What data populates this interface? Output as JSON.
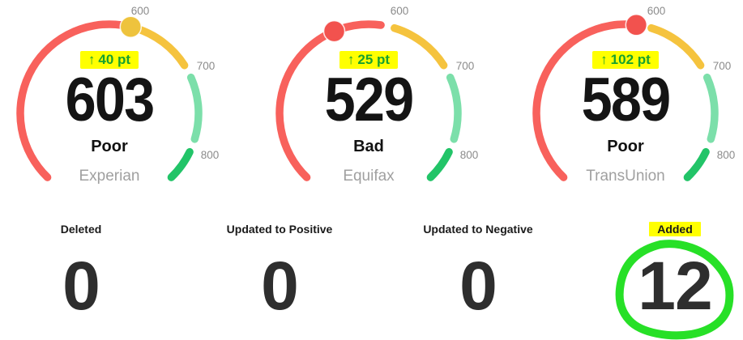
{
  "gauges": [
    {
      "bureau": "Experian",
      "score": "603",
      "category": "Poor",
      "arrow": "↑",
      "delta": "40 pt"
    },
    {
      "bureau": "Equifax",
      "score": "529",
      "category": "Bad",
      "arrow": "↑",
      "delta": "25 pt"
    },
    {
      "bureau": "TransUnion",
      "score": "589",
      "category": "Poor",
      "arrow": "↑",
      "delta": "102 pt"
    }
  ],
  "stats": [
    {
      "label": "Deleted",
      "value": "0"
    },
    {
      "label": "Updated to Positive",
      "value": "0"
    },
    {
      "label": "Updated to Negative",
      "value": "0"
    },
    {
      "label": "Added",
      "value": "12"
    }
  ],
  "colors": {
    "arc_red": "#F8615C",
    "arc_gold": "#F5C33E",
    "arc_mint": "#7CDFAA",
    "arc_green": "#22C468",
    "dot_gold": "#EEC33D",
    "dot_red": "#F2524E",
    "tick_gray": "#8B8B8B",
    "bureau_gray": "#A0A0A0",
    "delta_green": "#18A12E",
    "highlight_yellow": "#FFFF00",
    "annotation_green": "#27E027",
    "score_black": "#141414",
    "value_dark": "#2E2E2E"
  },
  "chart_data": [
    {
      "type": "gauge",
      "title": "Experian",
      "value": 603,
      "category": "Poor",
      "delta": "+40 pt",
      "min": 300,
      "max": 850,
      "ticks": [
        "600",
        "700",
        "800"
      ],
      "tick_values": [
        600,
        700,
        800
      ],
      "segments": [
        {
          "from": 300,
          "to": 600,
          "color": "#F8615C"
        },
        {
          "from": 600,
          "to": 700,
          "color": "#F5C33E"
        },
        {
          "from": 700,
          "to": 800,
          "color": "#7CDFAA"
        },
        {
          "from": 800,
          "to": 850,
          "color": "#22C468"
        }
      ],
      "dot_color": "#EEC33D"
    },
    {
      "type": "gauge",
      "title": "Equifax",
      "value": 529,
      "category": "Bad",
      "delta": "+25 pt",
      "min": 300,
      "max": 850,
      "ticks": [
        "600",
        "700",
        "800"
      ],
      "tick_values": [
        600,
        700,
        800
      ],
      "segments": [
        {
          "from": 300,
          "to": 600,
          "color": "#F8615C"
        },
        {
          "from": 600,
          "to": 700,
          "color": "#F5C33E"
        },
        {
          "from": 700,
          "to": 800,
          "color": "#7CDFAA"
        },
        {
          "from": 800,
          "to": 850,
          "color": "#22C468"
        }
      ],
      "dot_color": "#F2524E"
    },
    {
      "type": "gauge",
      "title": "TransUnion",
      "value": 589,
      "category": "Poor",
      "delta": "+102 pt",
      "min": 300,
      "max": 850,
      "ticks": [
        "600",
        "700",
        "800"
      ],
      "tick_values": [
        600,
        700,
        800
      ],
      "segments": [
        {
          "from": 300,
          "to": 600,
          "color": "#F8615C"
        },
        {
          "from": 600,
          "to": 700,
          "color": "#F5C33E"
        },
        {
          "from": 700,
          "to": 800,
          "color": "#7CDFAA"
        },
        {
          "from": 800,
          "to": 850,
          "color": "#22C468"
        }
      ],
      "dot_color": "#F2524E"
    },
    {
      "type": "kpi",
      "items": [
        {
          "label": "Deleted",
          "value": 0
        },
        {
          "label": "Updated to Positive",
          "value": 0
        },
        {
          "label": "Updated to Negative",
          "value": 0
        },
        {
          "label": "Added",
          "value": 12,
          "annotations": [
            "yellow-highlight",
            "green-circle"
          ]
        }
      ]
    }
  ]
}
